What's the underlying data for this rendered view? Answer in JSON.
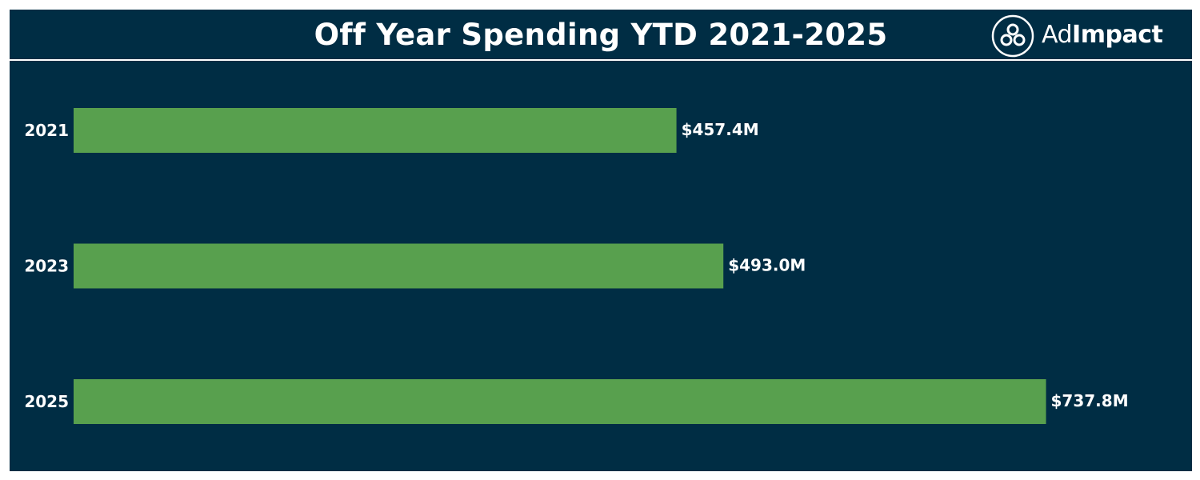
{
  "header": {
    "title": "Off Year Spending YTD 2021-2025",
    "logo_text_light": "Ad",
    "logo_text_bold": "Impact"
  },
  "colors": {
    "background": "#002d44",
    "bar": "#58a04e",
    "text": "#ffffff"
  },
  "chart_data": {
    "type": "bar",
    "orientation": "horizontal",
    "title": "Off Year Spending YTD 2021-2025",
    "categories": [
      "2021",
      "2023",
      "2025"
    ],
    "values": [
      457.4,
      493.0,
      737.8
    ],
    "value_labels": [
      "$457.4M",
      "$493.0M",
      "$737.8M"
    ],
    "unit": "$M",
    "xlim": [
      0,
      800
    ],
    "grid": false,
    "legend": "none"
  }
}
